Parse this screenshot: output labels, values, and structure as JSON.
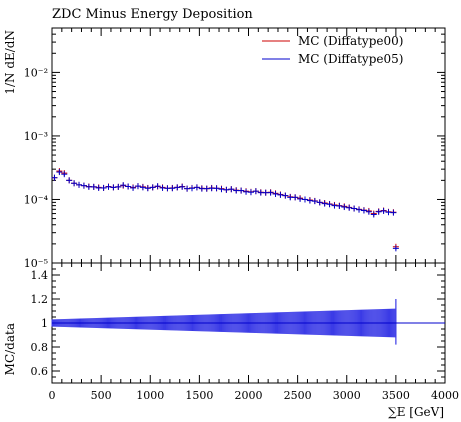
{
  "chart_data": {
    "type": "scatter",
    "title": "ZDC Minus Energy Deposition",
    "main": {
      "ylabel": "1/N dE/dN",
      "yscale": "log",
      "ylim": [
        1e-05,
        0.05
      ],
      "y_ticks": [
        {
          "value": 0.01,
          "label": "10⁻²"
        },
        {
          "value": 0.001,
          "label": "10⁻³"
        },
        {
          "value": 0.0001,
          "label": "10⁻⁴"
        },
        {
          "value": 1e-05,
          "label": "10⁻⁵"
        }
      ]
    },
    "ratio": {
      "ylabel": "MC/data",
      "ylim": [
        0.5,
        1.5
      ],
      "y_ticks": [
        {
          "value": 0.6,
          "label": "0.6"
        },
        {
          "value": 0.8,
          "label": "0.8"
        },
        {
          "value": 1.0,
          "label": "1"
        },
        {
          "value": 1.2,
          "label": "1.2"
        },
        {
          "value": 1.4,
          "label": "1.4"
        }
      ],
      "band_color": "#3b3be6",
      "band_halfwidth_start": 0.03,
      "band_halfwidth_end": 0.12,
      "band_end": 3500
    },
    "x": {
      "label": "∑E [GeV]",
      "lim": [
        0,
        4000
      ],
      "ticks": [
        0,
        500,
        1000,
        1500,
        2000,
        2500,
        3000,
        3500,
        4000
      ]
    },
    "legend": {
      "placement": "top-right",
      "entries": [
        {
          "label": "MC (Diffatype00)",
          "color": "#cc0000"
        },
        {
          "label": "MC (Diffatype05)",
          "color": "#0000cc"
        }
      ]
    },
    "series": [
      {
        "name": "MC (Diffatype00)",
        "color": "#cc0000",
        "points": [
          {
            "x": 25,
            "y": 0.00022
          },
          {
            "x": 75,
            "y": 0.00028
          },
          {
            "x": 125,
            "y": 0.00026
          },
          {
            "x": 175,
            "y": 0.0002
          },
          {
            "x": 225,
            "y": 0.00018
          },
          {
            "x": 275,
            "y": 0.00017
          },
          {
            "x": 325,
            "y": 0.000165
          },
          {
            "x": 375,
            "y": 0.00016
          },
          {
            "x": 425,
            "y": 0.000158
          },
          {
            "x": 475,
            "y": 0.000155
          },
          {
            "x": 525,
            "y": 0.000152
          },
          {
            "x": 575,
            "y": 0.00016
          },
          {
            "x": 625,
            "y": 0.000155
          },
          {
            "x": 675,
            "y": 0.000158
          },
          {
            "x": 725,
            "y": 0.000165
          },
          {
            "x": 775,
            "y": 0.00016
          },
          {
            "x": 825,
            "y": 0.000155
          },
          {
            "x": 875,
            "y": 0.000162
          },
          {
            "x": 925,
            "y": 0.000158
          },
          {
            "x": 975,
            "y": 0.000152
          },
          {
            "x": 1025,
            "y": 0.000155
          },
          {
            "x": 1075,
            "y": 0.00016
          },
          {
            "x": 1125,
            "y": 0.000155
          },
          {
            "x": 1175,
            "y": 0.00015
          },
          {
            "x": 1225,
            "y": 0.000152
          },
          {
            "x": 1275,
            "y": 0.000155
          },
          {
            "x": 1325,
            "y": 0.00016
          },
          {
            "x": 1375,
            "y": 0.000148
          },
          {
            "x": 1425,
            "y": 0.000152
          },
          {
            "x": 1475,
            "y": 0.000155
          },
          {
            "x": 1525,
            "y": 0.00015
          },
          {
            "x": 1575,
            "y": 0.000148
          },
          {
            "x": 1625,
            "y": 0.000152
          },
          {
            "x": 1675,
            "y": 0.00015
          },
          {
            "x": 1725,
            "y": 0.000148
          },
          {
            "x": 1775,
            "y": 0.000142
          },
          {
            "x": 1825,
            "y": 0.000145
          },
          {
            "x": 1875,
            "y": 0.00014
          },
          {
            "x": 1925,
            "y": 0.000138
          },
          {
            "x": 1975,
            "y": 0.000135
          },
          {
            "x": 2025,
            "y": 0.000132
          },
          {
            "x": 2075,
            "y": 0.000135
          },
          {
            "x": 2125,
            "y": 0.00013
          },
          {
            "x": 2175,
            "y": 0.000128
          },
          {
            "x": 2225,
            "y": 0.00013
          },
          {
            "x": 2275,
            "y": 0.000125
          },
          {
            "x": 2325,
            "y": 0.00012
          },
          {
            "x": 2375,
            "y": 0.000115
          },
          {
            "x": 2425,
            "y": 0.00011
          },
          {
            "x": 2475,
            "y": 0.000108
          },
          {
            "x": 2525,
            "y": 0.000105
          },
          {
            "x": 2575,
            "y": 0.0001
          },
          {
            "x": 2625,
            "y": 9.8e-05
          },
          {
            "x": 2675,
            "y": 9.5e-05
          },
          {
            "x": 2725,
            "y": 9e-05
          },
          {
            "x": 2775,
            "y": 8.8e-05
          },
          {
            "x": 2825,
            "y": 8.5e-05
          },
          {
            "x": 2875,
            "y": 8.2e-05
          },
          {
            "x": 2925,
            "y": 8e-05
          },
          {
            "x": 2975,
            "y": 7.8e-05
          },
          {
            "x": 3025,
            "y": 7.5e-05
          },
          {
            "x": 3075,
            "y": 7.2e-05
          },
          {
            "x": 3125,
            "y": 7e-05
          },
          {
            "x": 3175,
            "y": 6.8e-05
          },
          {
            "x": 3225,
            "y": 6.6e-05
          },
          {
            "x": 3275,
            "y": 6e-05
          },
          {
            "x": 3325,
            "y": 6.5e-05
          },
          {
            "x": 3375,
            "y": 6.7e-05
          },
          {
            "x": 3425,
            "y": 6.4e-05
          },
          {
            "x": 3475,
            "y": 6.3e-05
          },
          {
            "x": 3500,
            "y": 1.8e-05
          }
        ]
      },
      {
        "name": "MC (Diffatype05)",
        "color": "#0000cc",
        "points": [
          {
            "x": 25,
            "y": 0.00022
          },
          {
            "x": 75,
            "y": 0.00027
          },
          {
            "x": 125,
            "y": 0.00025
          },
          {
            "x": 175,
            "y": 0.0002
          },
          {
            "x": 225,
            "y": 0.00018
          },
          {
            "x": 275,
            "y": 0.00017
          },
          {
            "x": 325,
            "y": 0.000165
          },
          {
            "x": 375,
            "y": 0.000158
          },
          {
            "x": 425,
            "y": 0.000158
          },
          {
            "x": 475,
            "y": 0.000152
          },
          {
            "x": 525,
            "y": 0.000152
          },
          {
            "x": 575,
            "y": 0.000158
          },
          {
            "x": 625,
            "y": 0.000155
          },
          {
            "x": 675,
            "y": 0.000158
          },
          {
            "x": 725,
            "y": 0.000168
          },
          {
            "x": 775,
            "y": 0.00016
          },
          {
            "x": 825,
            "y": 0.000152
          },
          {
            "x": 875,
            "y": 0.000162
          },
          {
            "x": 925,
            "y": 0.000155
          },
          {
            "x": 975,
            "y": 0.00015
          },
          {
            "x": 1025,
            "y": 0.000155
          },
          {
            "x": 1075,
            "y": 0.000162
          },
          {
            "x": 1125,
            "y": 0.000152
          },
          {
            "x": 1175,
            "y": 0.00015
          },
          {
            "x": 1225,
            "y": 0.00015
          },
          {
            "x": 1275,
            "y": 0.000155
          },
          {
            "x": 1325,
            "y": 0.000158
          },
          {
            "x": 1375,
            "y": 0.000148
          },
          {
            "x": 1425,
            "y": 0.00015
          },
          {
            "x": 1475,
            "y": 0.000155
          },
          {
            "x": 1525,
            "y": 0.000148
          },
          {
            "x": 1575,
            "y": 0.000148
          },
          {
            "x": 1625,
            "y": 0.00015
          },
          {
            "x": 1675,
            "y": 0.00015
          },
          {
            "x": 1725,
            "y": 0.000145
          },
          {
            "x": 1775,
            "y": 0.000142
          },
          {
            "x": 1825,
            "y": 0.000145
          },
          {
            "x": 1875,
            "y": 0.000138
          },
          {
            "x": 1925,
            "y": 0.000138
          },
          {
            "x": 1975,
            "y": 0.000132
          },
          {
            "x": 2025,
            "y": 0.00013
          },
          {
            "x": 2075,
            "y": 0.000135
          },
          {
            "x": 2125,
            "y": 0.000128
          },
          {
            "x": 2175,
            "y": 0.000128
          },
          {
            "x": 2225,
            "y": 0.000128
          },
          {
            "x": 2275,
            "y": 0.000122
          },
          {
            "x": 2325,
            "y": 0.000118
          },
          {
            "x": 2375,
            "y": 0.000115
          },
          {
            "x": 2425,
            "y": 0.000108
          },
          {
            "x": 2475,
            "y": 0.000108
          },
          {
            "x": 2525,
            "y": 0.000102
          },
          {
            "x": 2575,
            "y": 0.0001
          },
          {
            "x": 2625,
            "y": 9.6e-05
          },
          {
            "x": 2675,
            "y": 9.4e-05
          },
          {
            "x": 2725,
            "y": 9e-05
          },
          {
            "x": 2775,
            "y": 8.6e-05
          },
          {
            "x": 2825,
            "y": 8.4e-05
          },
          {
            "x": 2875,
            "y": 8e-05
          },
          {
            "x": 2925,
            "y": 7.9e-05
          },
          {
            "x": 2975,
            "y": 7.6e-05
          },
          {
            "x": 3025,
            "y": 7.4e-05
          },
          {
            "x": 3075,
            "y": 7.2e-05
          },
          {
            "x": 3125,
            "y": 6.9e-05
          },
          {
            "x": 3175,
            "y": 6.7e-05
          },
          {
            "x": 3225,
            "y": 6.4e-05
          },
          {
            "x": 3275,
            "y": 5.8e-05
          },
          {
            "x": 3325,
            "y": 6.4e-05
          },
          {
            "x": 3375,
            "y": 6.6e-05
          },
          {
            "x": 3425,
            "y": 6.3e-05
          },
          {
            "x": 3475,
            "y": 6.2e-05
          },
          {
            "x": 3500,
            "y": 1.7e-05
          }
        ]
      }
    ]
  }
}
